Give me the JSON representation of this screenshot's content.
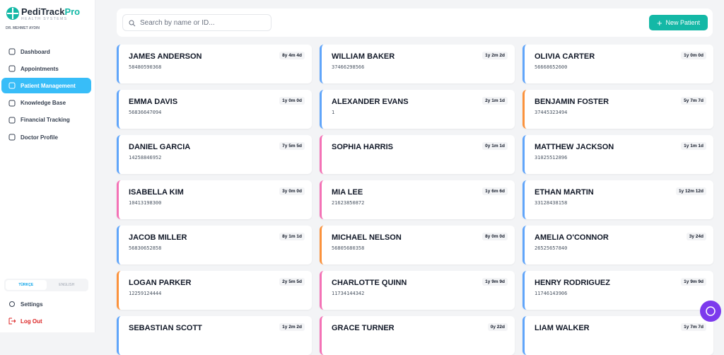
{
  "sidebar": {
    "brand": "PediTrack",
    "brand_suffix": "Pro",
    "tagline": "HEALTH SYSTEMS",
    "doctor": "DR. MEHMET AYDIN",
    "nav": [
      "Dashboard",
      "Appointments",
      "Patient Management",
      "Knowledge Base",
      "Financial Tracking",
      "Doctor Profile"
    ],
    "active_nav": 2,
    "languages": [
      "TÜRKÇE",
      "ENGLISH"
    ],
    "settings": "Settings",
    "logout": "Log Out"
  },
  "search": {
    "placeholder": "Search by name or ID..."
  },
  "new_patient": "New Patient",
  "patients": [
    {
      "name": "JAMES ANDERSON",
      "id": "58480590368",
      "age": "8y 4m 4d",
      "color": "#60a5fa"
    },
    {
      "name": "WILLIAM BAKER",
      "id": "37466298566",
      "age": "1y 2m 2d",
      "color": "#60a5fa"
    },
    {
      "name": "OLIVIA CARTER",
      "id": "56668652600",
      "age": "1y 0m 0d",
      "color": "#60a5fa"
    },
    {
      "name": "EMMA DAVIS",
      "id": "56836647094",
      "age": "1y 0m 0d",
      "color": "#60a5fa"
    },
    {
      "name": "ALEXANDER EVANS",
      "id": "1",
      "age": "2y 1m 1d",
      "color": "#60a5fa"
    },
    {
      "name": "BENJAMIN FOSTER",
      "id": "37445323494",
      "age": "5y 7m 7d",
      "color": "#fb923c"
    },
    {
      "name": "DANIEL GARCIA",
      "id": "14258846952",
      "age": "7y 5m 5d",
      "color": "#60a5fa"
    },
    {
      "name": "SOPHIA HARRIS",
      "age": "0y 1m 1d",
      "color": "#f472b6"
    },
    {
      "name": "MATTHEW JACKSON",
      "id": "31025512896",
      "age": "1y 1m 1d",
      "color": "#60a5fa"
    },
    {
      "name": "ISABELLA KIM",
      "id": "10413198300",
      "age": "3y 0m 0d",
      "color": "#f472b6"
    },
    {
      "name": "MIA LEE",
      "id": "21623850872",
      "age": "1y 6m 6d",
      "color": "#f472b6"
    },
    {
      "name": "ETHAN MARTIN",
      "id": "33128438158",
      "age": "1y 12m 12d",
      "color": "#60a5fa"
    },
    {
      "name": "JACOB MILLER",
      "id": "56830652858",
      "age": "8y 1m 1d",
      "color": "#60a5fa"
    },
    {
      "name": "MICHAEL NELSON",
      "id": "56805680358",
      "age": "8y 0m 0d",
      "color": "#fb923c"
    },
    {
      "name": "AMELIA O'CONNOR",
      "id": "26525657840",
      "age": "3y 24d",
      "color": "#60a5fa"
    },
    {
      "name": "LOGAN PARKER",
      "id": "12259124444",
      "age": "2y 5m 5d",
      "color": "#fb923c"
    },
    {
      "name": "CHARLOTTE QUINN",
      "id": "11734144342",
      "age": "1y 9m 9d",
      "color": "#f472b6"
    },
    {
      "name": "HENRY RODRIGUEZ",
      "id": "11746143906",
      "age": "1y 9m 9d",
      "color": "#60a5fa"
    },
    {
      "name": "SEBASTIAN SCOTT",
      "age": "1y 2m 2d",
      "color": "#60a5fa"
    },
    {
      "name": "GRACE TURNER",
      "age": "0y 22d",
      "color": "#f472b6"
    },
    {
      "name": "LIAM WALKER",
      "age": "1y 7m 7d",
      "color": "#60a5fa"
    }
  ]
}
